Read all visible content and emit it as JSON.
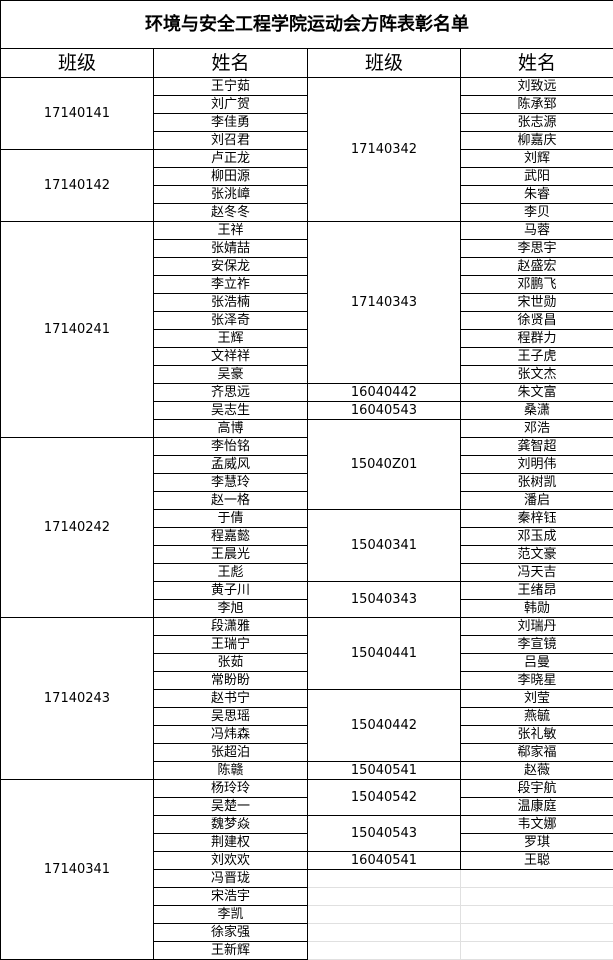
{
  "title": "环境与安全工程学院运动会方阵表彰名单",
  "headers": [
    "班级",
    "姓名",
    "班级",
    "姓名"
  ],
  "left_groups": [
    {
      "class": "17140141",
      "names": [
        "王宁茹",
        "刘广贺",
        "李佳勇",
        "刘召君"
      ]
    },
    {
      "class": "17140142",
      "names": [
        "卢正龙",
        "柳田源",
        "张洮嶂",
        "赵冬冬"
      ]
    },
    {
      "class": "17140241",
      "names": [
        "王祥",
        "张婧喆",
        "安保龙",
        "李立祚",
        "张浩楠",
        "张泽奇",
        "王辉",
        "文祥祥",
        "吴豪",
        "齐思远",
        "吴志生",
        "高博"
      ]
    },
    {
      "class": "17140242",
      "names": [
        "李怡铭",
        "孟威风",
        "李慧玲",
        "赵一格",
        "于倩",
        "程嘉懿",
        "王晨光",
        "王彪",
        "黄子川",
        "李旭"
      ]
    },
    {
      "class": "17140243",
      "names": [
        "段潇雅",
        "王瑞宁",
        "张茹",
        "常盼盼",
        "赵书宁",
        "吴思瑶",
        "冯炜森",
        "张超泊",
        "陈赣"
      ]
    },
    {
      "class": "17140341",
      "names": [
        "杨玲玲",
        "吴楚一",
        "魏梦焱",
        "荆建权",
        "刘欢欢",
        "冯晋珑",
        "宋浩宇",
        "李凯",
        "徐家强",
        "王新辉"
      ]
    }
  ],
  "right_groups": [
    {
      "class": "17140342",
      "names": [
        "刘致远",
        "陈承郅",
        "张志源",
        "柳嘉庆",
        "刘辉",
        "武阳",
        "朱睿",
        "李贝"
      ]
    },
    {
      "class": "17140343",
      "names": [
        "马蓉",
        "李思宇",
        "赵盛宏",
        "邓鹏飞",
        "宋世勋",
        "徐贤昌",
        "程群力",
        "王子虎",
        "张文杰"
      ]
    },
    {
      "class": "16040442",
      "names": [
        "朱文富"
      ]
    },
    {
      "class": "16040543",
      "names": [
        "桑潇"
      ]
    },
    {
      "class": "15040Z01",
      "names": [
        "邓浩",
        "龚智超",
        "刘明伟",
        "张树凯",
        "潘启"
      ]
    },
    {
      "class": "15040341",
      "names": [
        "秦梓钰",
        "邓玉成",
        "范文豪",
        "冯天吉"
      ]
    },
    {
      "class": "15040343",
      "names": [
        "王绪昂",
        "韩勋"
      ]
    },
    {
      "class": "15040441",
      "names": [
        "刘瑞丹",
        "李宣镜",
        "吕曼",
        "李晓星"
      ]
    },
    {
      "class": "15040442",
      "names": [
        "刘莹",
        "燕毓",
        "张礼敏",
        "郗家福"
      ]
    },
    {
      "class": "15040541",
      "names": [
        "赵薇"
      ]
    },
    {
      "class": "15040542",
      "names": [
        "段宇航",
        "温康庭"
      ]
    },
    {
      "class": "15040543",
      "names": [
        "韦文娜",
        "罗琪"
      ]
    },
    {
      "class": "16040541",
      "names": [
        "王聪"
      ]
    }
  ]
}
